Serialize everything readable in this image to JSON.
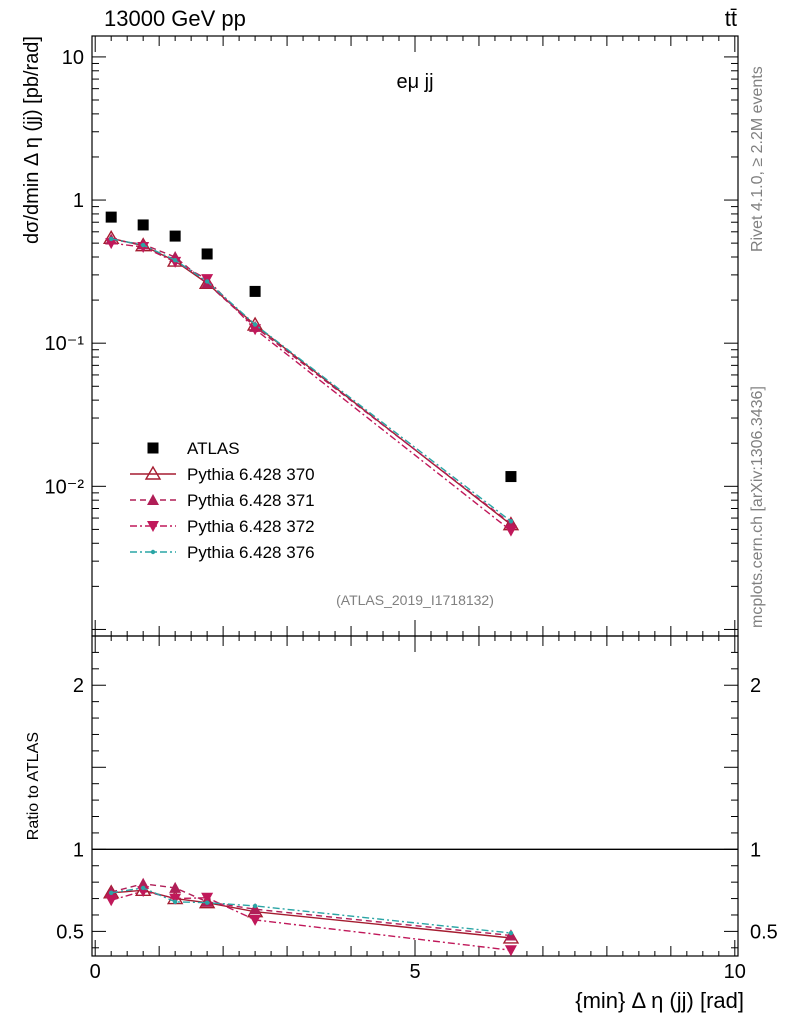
{
  "header": {
    "left": "13000 GeV pp",
    "right": "tt̄"
  },
  "side_labels": {
    "rivet": "Rivet 4.1.0, ≥ 2.2M events",
    "mcplots": "mcplots.cern.ch [arXiv:1306.3436]"
  },
  "chart_data": [
    {
      "type": "scatter",
      "panel": "main",
      "title": "eμ jj",
      "analysis_label": "(ATLAS_2019_I1718132)",
      "ylabel": "dσ/dmin Δ η (jj) [pb/rad]",
      "yscale": "log",
      "ylim": [
        0.0009,
        14
      ],
      "xlim": [
        -0.05,
        10.05
      ],
      "y_ticks": [
        {
          "value": 10,
          "label": "10"
        },
        {
          "value": 1,
          "label": "1"
        },
        {
          "value": 0.1,
          "label": "10⁻¹"
        },
        {
          "value": 0.01,
          "label": "10⁻²"
        }
      ],
      "x": [
        0.25,
        0.75,
        1.25,
        1.75,
        2.5,
        6.5
      ],
      "series": [
        {
          "name": "ATLAS",
          "color": "#000000",
          "marker": "square",
          "line": "none",
          "values": [
            0.76,
            0.67,
            0.56,
            0.42,
            0.23,
            0.0117
          ]
        },
        {
          "name": "Pythia 6.428 370",
          "color": "#a51c30",
          "marker": "triangle-up-open",
          "line": "solid",
          "values": [
            0.54,
            0.48,
            0.375,
            0.262,
            0.134,
            0.0054
          ]
        },
        {
          "name": "Pythia 6.428 371",
          "color": "#b01e57",
          "marker": "triangle-up",
          "line": "dashed",
          "values": [
            0.53,
            0.49,
            0.4,
            0.262,
            0.13,
            0.0055
          ]
        },
        {
          "name": "Pythia 6.428 372",
          "color": "#c0185a",
          "marker": "triangle-down",
          "line": "dashdot",
          "values": [
            0.5,
            0.47,
            0.37,
            0.28,
            0.125,
            0.0049
          ]
        },
        {
          "name": "Pythia 6.428 376",
          "color": "#2aa5a5",
          "marker": "dot",
          "line": "dashdot",
          "values": [
            0.535,
            0.485,
            0.38,
            0.27,
            0.135,
            0.0057
          ]
        }
      ]
    },
    {
      "type": "line",
      "panel": "ratio",
      "ylabel": "Ratio to ATLAS",
      "xlabel": "{min} Δ η (jj) [rad]",
      "ylim": [
        0.35,
        2.3
      ],
      "xlim": [
        -0.05,
        10.05
      ],
      "reference_line": 1,
      "y_ticks": [
        {
          "value": 0.5,
          "label": "0.5"
        },
        {
          "value": 1,
          "label": "1"
        },
        {
          "value": 2,
          "label": "2"
        }
      ],
      "x_ticks": [
        {
          "value": 0,
          "label": "0"
        },
        {
          "value": 5,
          "label": "5"
        },
        {
          "value": 10,
          "label": "10"
        }
      ],
      "x": [
        0.25,
        0.75,
        1.25,
        1.75,
        2.5,
        6.5
      ],
      "series": [
        {
          "name": "Pythia 6.428 370",
          "values": [
            0.735,
            0.75,
            0.7,
            0.675,
            0.62,
            0.46
          ]
        },
        {
          "name": "Pythia 6.428 371",
          "values": [
            0.74,
            0.79,
            0.765,
            0.68,
            0.635,
            0.475
          ]
        },
        {
          "name": "Pythia 6.428 372",
          "values": [
            0.69,
            0.745,
            0.7,
            0.705,
            0.57,
            0.385
          ]
        },
        {
          "name": "Pythia 6.428 376",
          "values": [
            0.735,
            0.765,
            0.68,
            0.675,
            0.655,
            0.49
          ]
        }
      ]
    }
  ]
}
